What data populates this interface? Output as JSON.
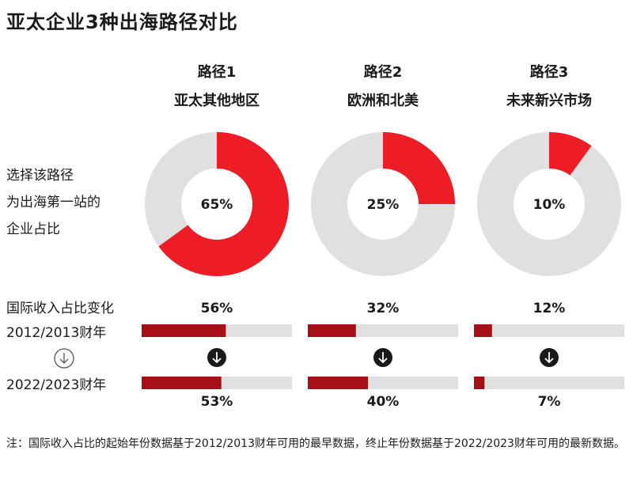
{
  "title": "亚太企业3种出海路径对比",
  "columns": [
    {
      "route": "路径1",
      "region": "亚太其他地区"
    },
    {
      "route": "路径2",
      "region": "欧洲和北美"
    },
    {
      "route": "路径3",
      "region": "未来新兴市场"
    }
  ],
  "row_labels": {
    "share_lines": [
      "选择该路径",
      "为出海第一站的",
      "企业占比"
    ],
    "change_title": "国际收入占比变化",
    "start_year": "2012/2013财年",
    "end_year": "2022/2023财年"
  },
  "note": "注：国际收入占比的起始年份数据基于2012/2013财年可用的最早数据，终止年份数据基于2022/2023财年可用的最新数据。",
  "colors": {
    "red": "#ee1c25",
    "dark_red": "#a50f15",
    "gray": "#e0e0e0",
    "arrow_circle": "#1a1a1a"
  },
  "chart_data": [
    {
      "type": "pie",
      "variant": "donut",
      "categories": [
        "亚太其他地区",
        "欧洲和北美",
        "未来新兴市场"
      ],
      "values": [
        65,
        25,
        10
      ],
      "labels": [
        "65%",
        "25%",
        "10%"
      ]
    },
    {
      "type": "bar",
      "orientation": "horizontal",
      "categories": [
        "亚太其他地区",
        "欧洲和北美",
        "未来新兴市场"
      ],
      "series": [
        {
          "name": "2012/2013财年",
          "values": [
            56,
            32,
            12
          ],
          "labels": [
            "56%",
            "32%",
            "12%"
          ]
        },
        {
          "name": "2022/2023财年",
          "values": [
            53,
            40,
            7
          ],
          "labels": [
            "53%",
            "40%",
            "7%"
          ]
        }
      ],
      "xlim": [
        0,
        100
      ]
    }
  ]
}
